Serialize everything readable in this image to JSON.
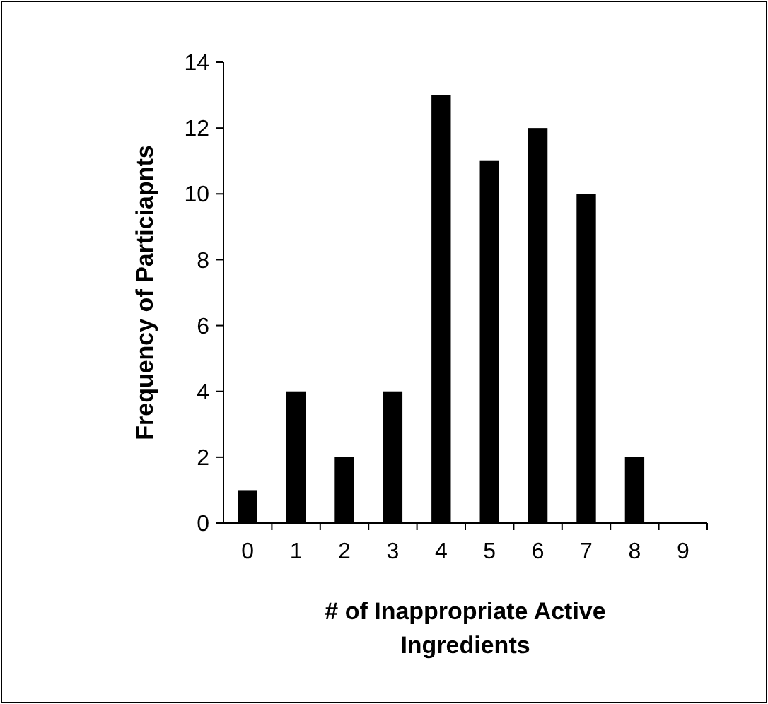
{
  "chart_data": {
    "type": "bar",
    "xlabel": "# of Inappropriate Active Ingredients",
    "ylabel": "Frequency of Particiapnts",
    "categories": [
      "0",
      "1",
      "2",
      "3",
      "4",
      "5",
      "6",
      "7",
      "8",
      "9"
    ],
    "values": [
      1,
      4,
      2,
      4,
      13,
      11,
      12,
      10,
      2,
      0
    ],
    "color": "#000000",
    "ylim": [
      0,
      14
    ],
    "yticks": [
      0,
      2,
      4,
      6,
      8,
      10,
      12,
      14
    ],
    "grid": false
  }
}
